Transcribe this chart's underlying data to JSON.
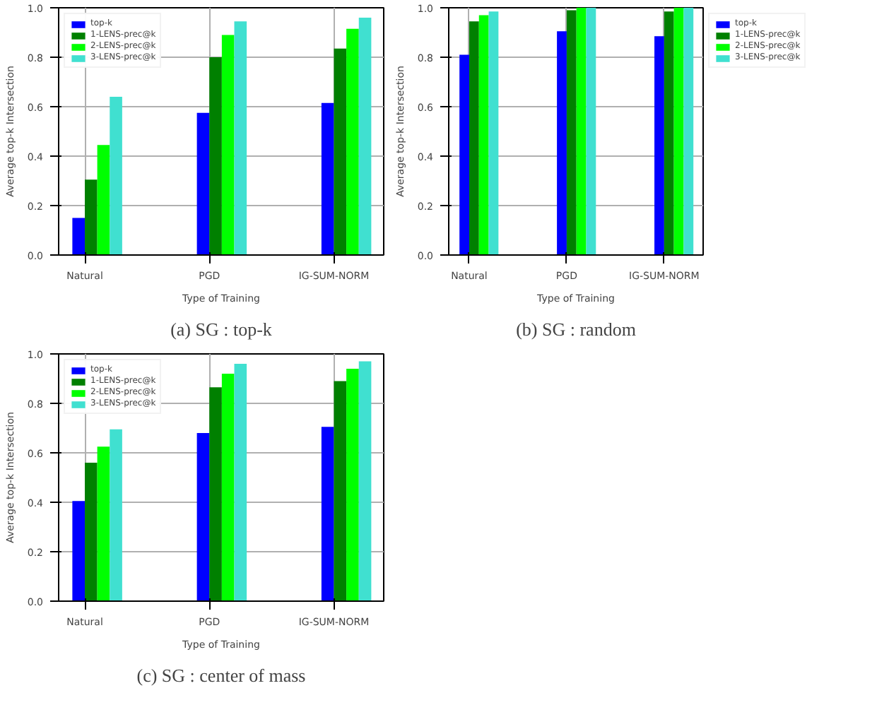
{
  "chart_data": [
    {
      "type": "bar",
      "title": "(a) SG : top-k",
      "xlabel": "Type of Training",
      "ylabel": "Average top-k Intersection",
      "categories": [
        "Natural",
        "PGD",
        "IG-SUM-NORM"
      ],
      "series": [
        {
          "name": "top-k",
          "color": "#0000ff",
          "values": [
            0.15,
            0.575,
            0.615
          ]
        },
        {
          "name": "1-LENS-prec@k",
          "color": "#008000",
          "values": [
            0.305,
            0.8,
            0.835
          ]
        },
        {
          "name": "2-LENS-prec@k",
          "color": "#00ff00",
          "values": [
            0.445,
            0.89,
            0.915
          ]
        },
        {
          "name": "3-LENS-prec@k",
          "color": "#40e0d0",
          "values": [
            0.64,
            0.945,
            0.96
          ]
        }
      ],
      "ylim": [
        0,
        1
      ],
      "yticks": [
        {
          "value": 0,
          "label": "0.0"
        },
        {
          "value": 0.2,
          "label": "0.2"
        },
        {
          "value": 0.4,
          "label": "0.4"
        },
        {
          "value": 0.6,
          "label": "0.6"
        },
        {
          "value": 0.8,
          "label": "0.8"
        },
        {
          "value": 1,
          "label": "1.0"
        }
      ],
      "grid": true,
      "legend": "top left"
    },
    {
      "type": "bar",
      "title": "(b) SG : random",
      "xlabel": "Type of Training",
      "ylabel": "Average top-k Intersection",
      "categories": [
        "Natural",
        "PGD",
        "IG-SUM-NORM"
      ],
      "series": [
        {
          "name": "top-k",
          "color": "#0000ff",
          "values": [
            0.81,
            0.905,
            0.885
          ]
        },
        {
          "name": "1-LENS-prec@k",
          "color": "#008000",
          "values": [
            0.945,
            0.99,
            0.985
          ]
        },
        {
          "name": "2-LENS-prec@k",
          "color": "#00ff00",
          "values": [
            0.97,
            1.0,
            1.0
          ]
        },
        {
          "name": "3-LENS-prec@k",
          "color": "#40e0d0",
          "values": [
            0.985,
            1.0,
            1.0
          ]
        }
      ],
      "ylim": [
        0,
        1
      ],
      "yticks": [
        {
          "value": 0,
          "label": "0.0"
        },
        {
          "value": 0.2,
          "label": "0.2"
        },
        {
          "value": 0.4,
          "label": "0.4"
        },
        {
          "value": 0.6,
          "label": "0.6"
        },
        {
          "value": 0.8,
          "label": "0.8"
        },
        {
          "value": 1,
          "label": "1.0"
        }
      ],
      "grid": true,
      "legend": "right"
    },
    {
      "type": "bar",
      "title": "(c) SG : center of mass",
      "xlabel": "Type of Training",
      "ylabel": "Average top-k Intersection",
      "categories": [
        "Natural",
        "PGD",
        "IG-SUM-NORM"
      ],
      "series": [
        {
          "name": "top-k",
          "color": "#0000ff",
          "values": [
            0.405,
            0.68,
            0.705
          ]
        },
        {
          "name": "1-LENS-prec@k",
          "color": "#008000",
          "values": [
            0.56,
            0.865,
            0.89
          ]
        },
        {
          "name": "2-LENS-prec@k",
          "color": "#00ff00",
          "values": [
            0.625,
            0.92,
            0.94
          ]
        },
        {
          "name": "3-LENS-prec@k",
          "color": "#40e0d0",
          "values": [
            0.695,
            0.96,
            0.97
          ]
        }
      ],
      "ylim": [
        0,
        1
      ],
      "yticks": [
        {
          "value": 0,
          "label": "0.0"
        },
        {
          "value": 0.2,
          "label": "0.2"
        },
        {
          "value": 0.4,
          "label": "0.4"
        },
        {
          "value": 0.6,
          "label": "0.6"
        },
        {
          "value": 0.8,
          "label": "0.8"
        },
        {
          "value": 1,
          "label": "1.0"
        }
      ],
      "grid": true,
      "legend": "top left"
    }
  ]
}
